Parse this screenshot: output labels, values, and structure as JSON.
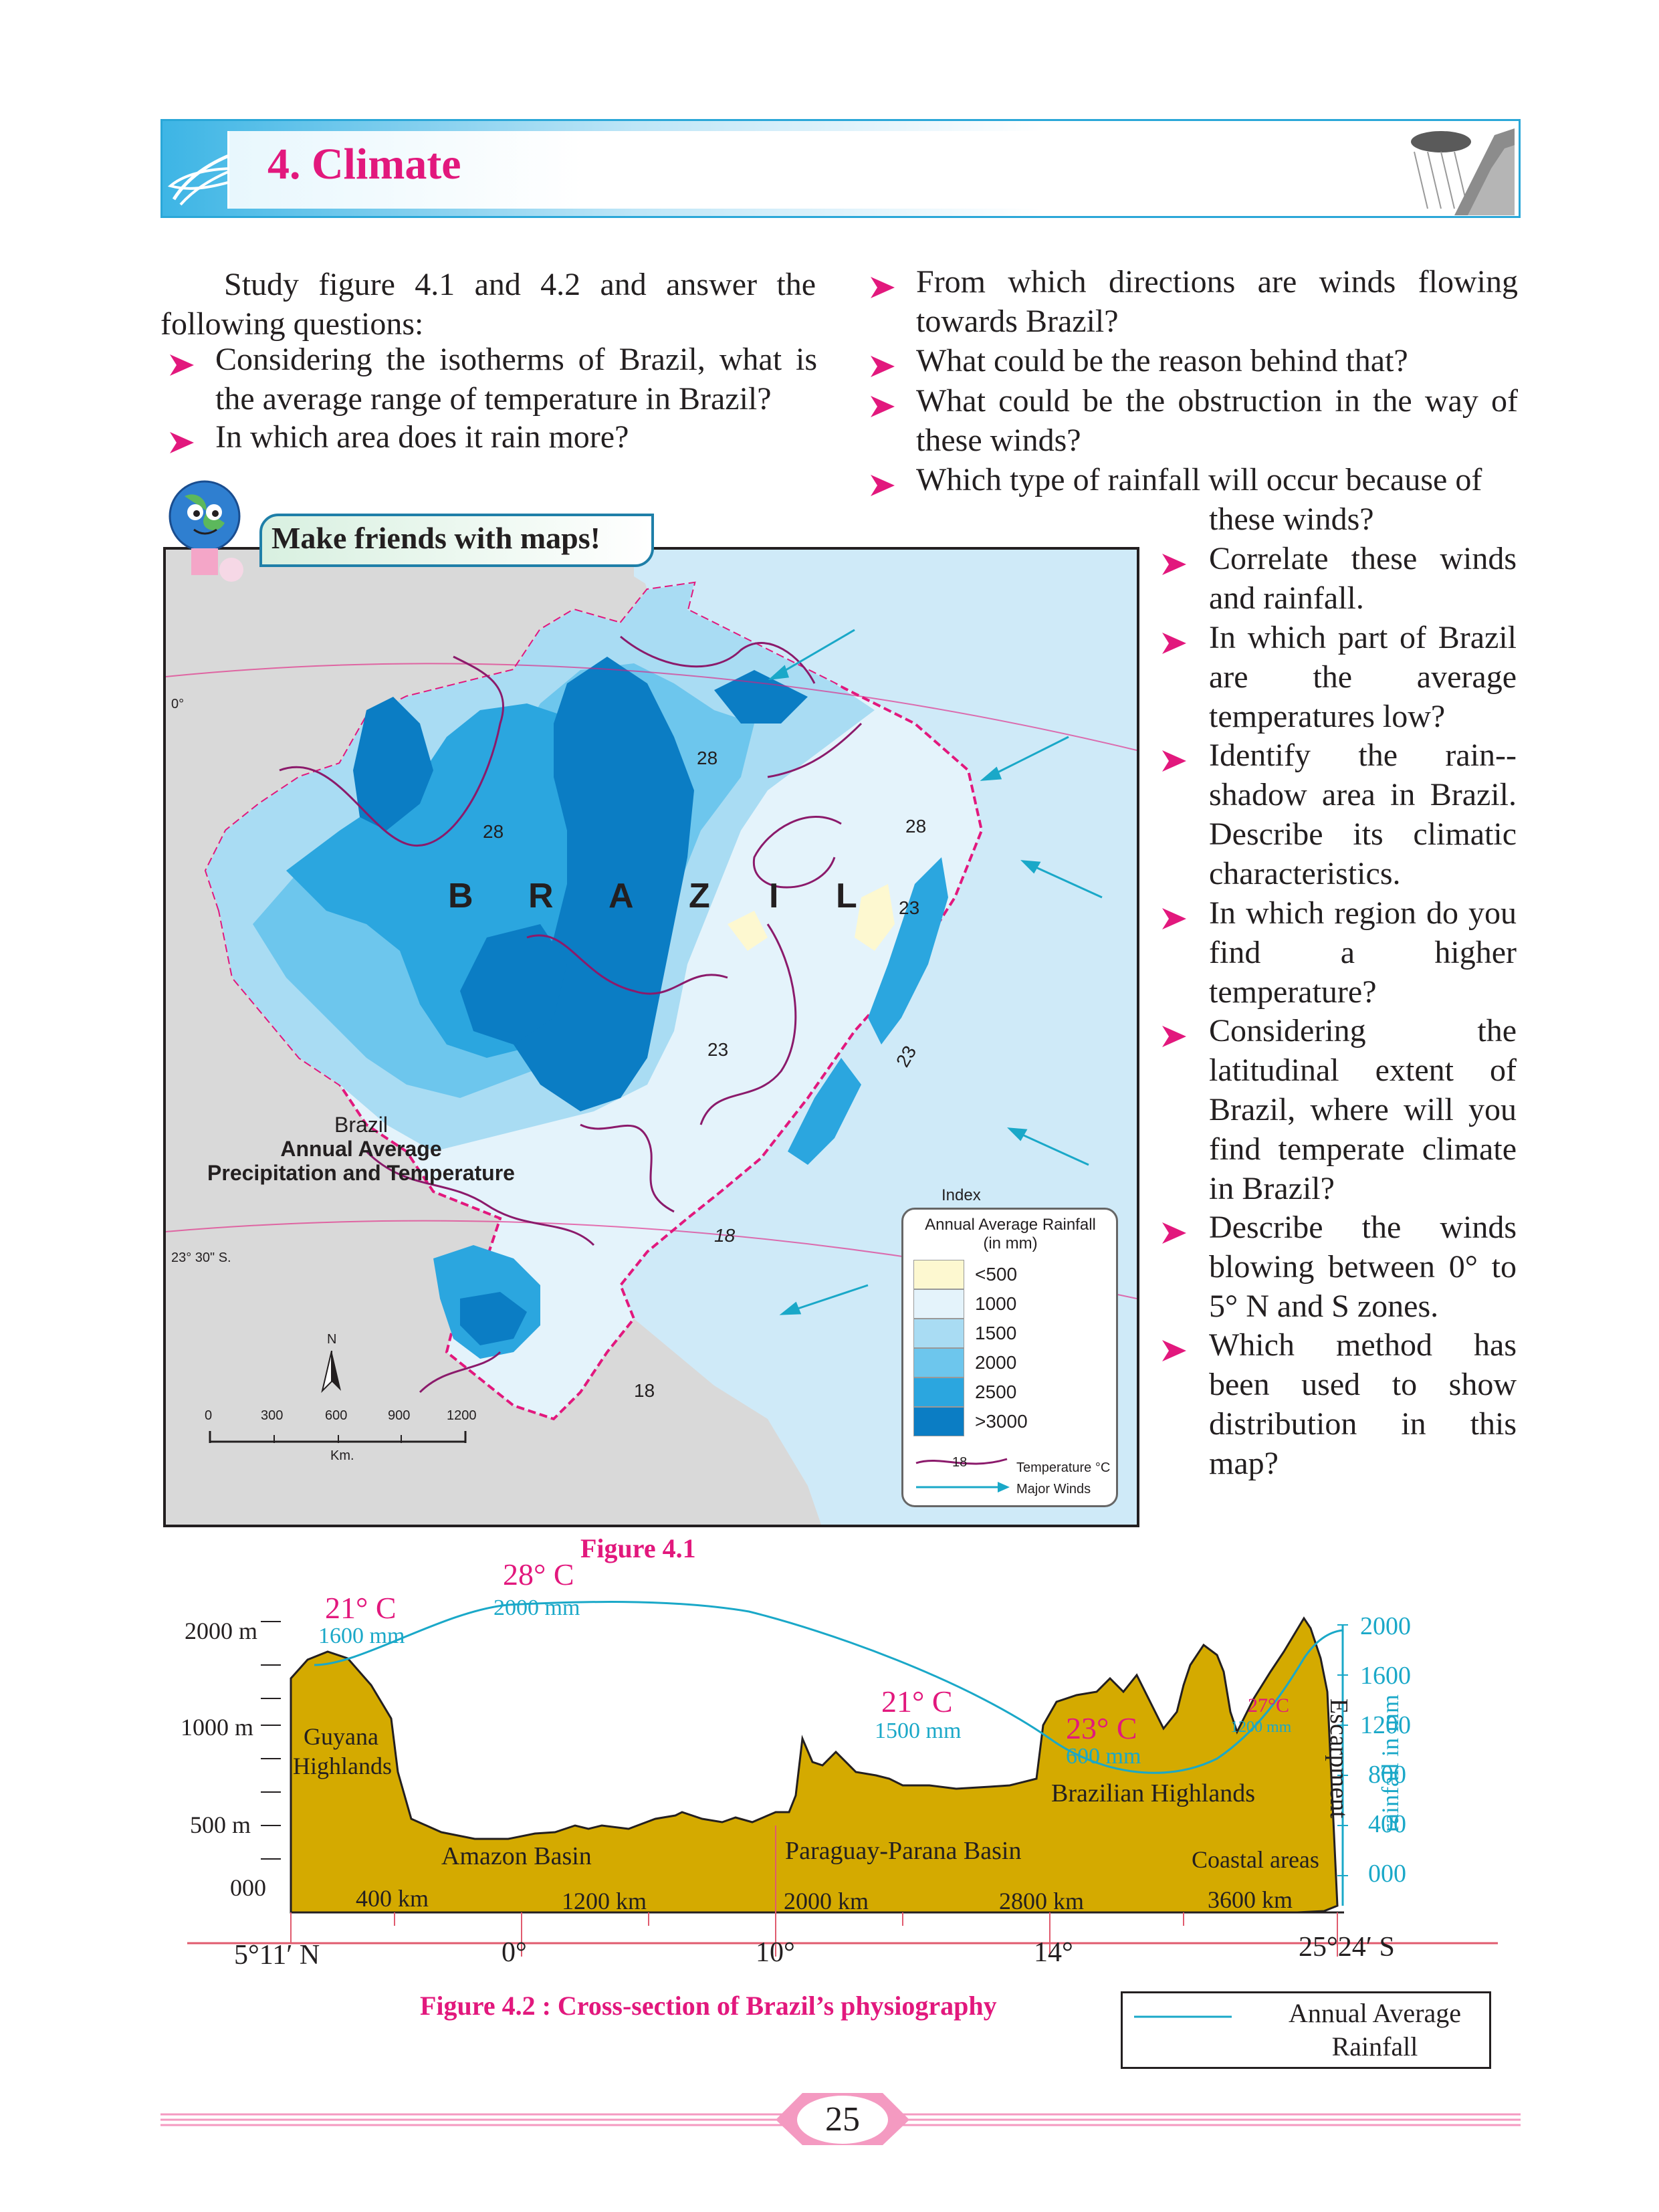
{
  "header": {
    "chapter_title": "4. Climate"
  },
  "intro": {
    "text": "Study figure  4.1 and 4.2 and answer the following questions:"
  },
  "questions_left": [
    "Considering the isotherms of Brazil, what is the average range of temperature in Brazil?",
    "In which area does it rain more?"
  ],
  "questions_right_top": [
    "From which directions are winds flowing towards  Brazil?",
    "What could be the reason behind that?",
    "What could be the obstruction in the way of these winds?",
    "Which type of rainfall will occur because of"
  ],
  "questions_right_cont": "these winds?",
  "questions_right_narrow": [
    "Correlate these winds and rainfall.",
    "In which part of Brazil are the average temperatures low?",
    "Identify the rain--shadow area in Brazil. Describe its climatic characteristics.",
    "In which region do you find a higher temperature?",
    "Considering the latitudinal extent of Brazil, where will you find temperate climate in Brazil?",
    "Describe the winds blowing between 0° to 5°  N and S zones.",
    "Which method has been used to show distribution in this map?"
  ],
  "map": {
    "badge": "Make friends with maps!",
    "country_label": [
      "B",
      "R",
      "A",
      "Z",
      "I",
      "L"
    ],
    "title_line1": "Brazil",
    "title_line2": "Annual Average",
    "title_line3": "Precipitation and Temperature",
    "equator_label": "0°",
    "tropic_label": "23° 30\" S.",
    "north_label": "N",
    "scale_ticks": [
      "0",
      "300",
      "600",
      "900",
      "1200"
    ],
    "scale_unit": "Km.",
    "isotherm_labels": [
      "28",
      "28",
      "28",
      "23",
      "23",
      "23",
      "18",
      "18"
    ],
    "legend": {
      "index": "Index",
      "title1": "Annual Average Rainfall",
      "title2": "(in mm)",
      "classes": [
        {
          "label": "<500",
          "color": "#fdf8d0"
        },
        {
          "label": "1000",
          "color": "#e4f3fb"
        },
        {
          "label": "1500",
          "color": "#a9dcf3"
        },
        {
          "label": "2000",
          "color": "#6dc6ed"
        },
        {
          "label": "2500",
          "color": "#2ba6df"
        },
        {
          "label": ">3000",
          "color": "#0b7dc4"
        }
      ],
      "isotherm_sample": "18",
      "isotherm_text": "Temperature °C",
      "wind_text": "Major Winds"
    },
    "caption": "Figure 4.1"
  },
  "section": {
    "y_labels": [
      "2000 m",
      "1000 m",
      "500 m",
      "000"
    ],
    "rain_labels": [
      "2000",
      "1600",
      "1200",
      "800",
      "400",
      "000"
    ],
    "rain_axis_title": "rainfall in mm",
    "distance_labels": [
      "400 km",
      "1200 km",
      "2000 km",
      "2800 km",
      "3600 km"
    ],
    "lat_labels": [
      "5°11′ N",
      "0°",
      "10°",
      "14°",
      "25°24′ S"
    ],
    "regions": [
      "Guyana",
      "Highlands",
      "Amazon Basin",
      "Paraguay-Parana Basin",
      "Brazilian Highlands",
      "Coastal areas",
      "Escarpment"
    ],
    "stations": [
      {
        "temp": "21°  C",
        "rain": "1600 mm"
      },
      {
        "temp": "28°  C",
        "rain": "2000 mm"
      },
      {
        "temp": "21°  C",
        "rain": "1500 mm"
      },
      {
        "temp": "23°  C",
        "rain": "600 mm"
      },
      {
        "temp": "27°C",
        "rain": "1200 mm"
      }
    ],
    "caption": "Figure 4.2 : Cross-section of Brazil’s physiography",
    "legend_line1": "Annual Average",
    "legend_line2": "Rainfall"
  },
  "page_number": "25"
}
